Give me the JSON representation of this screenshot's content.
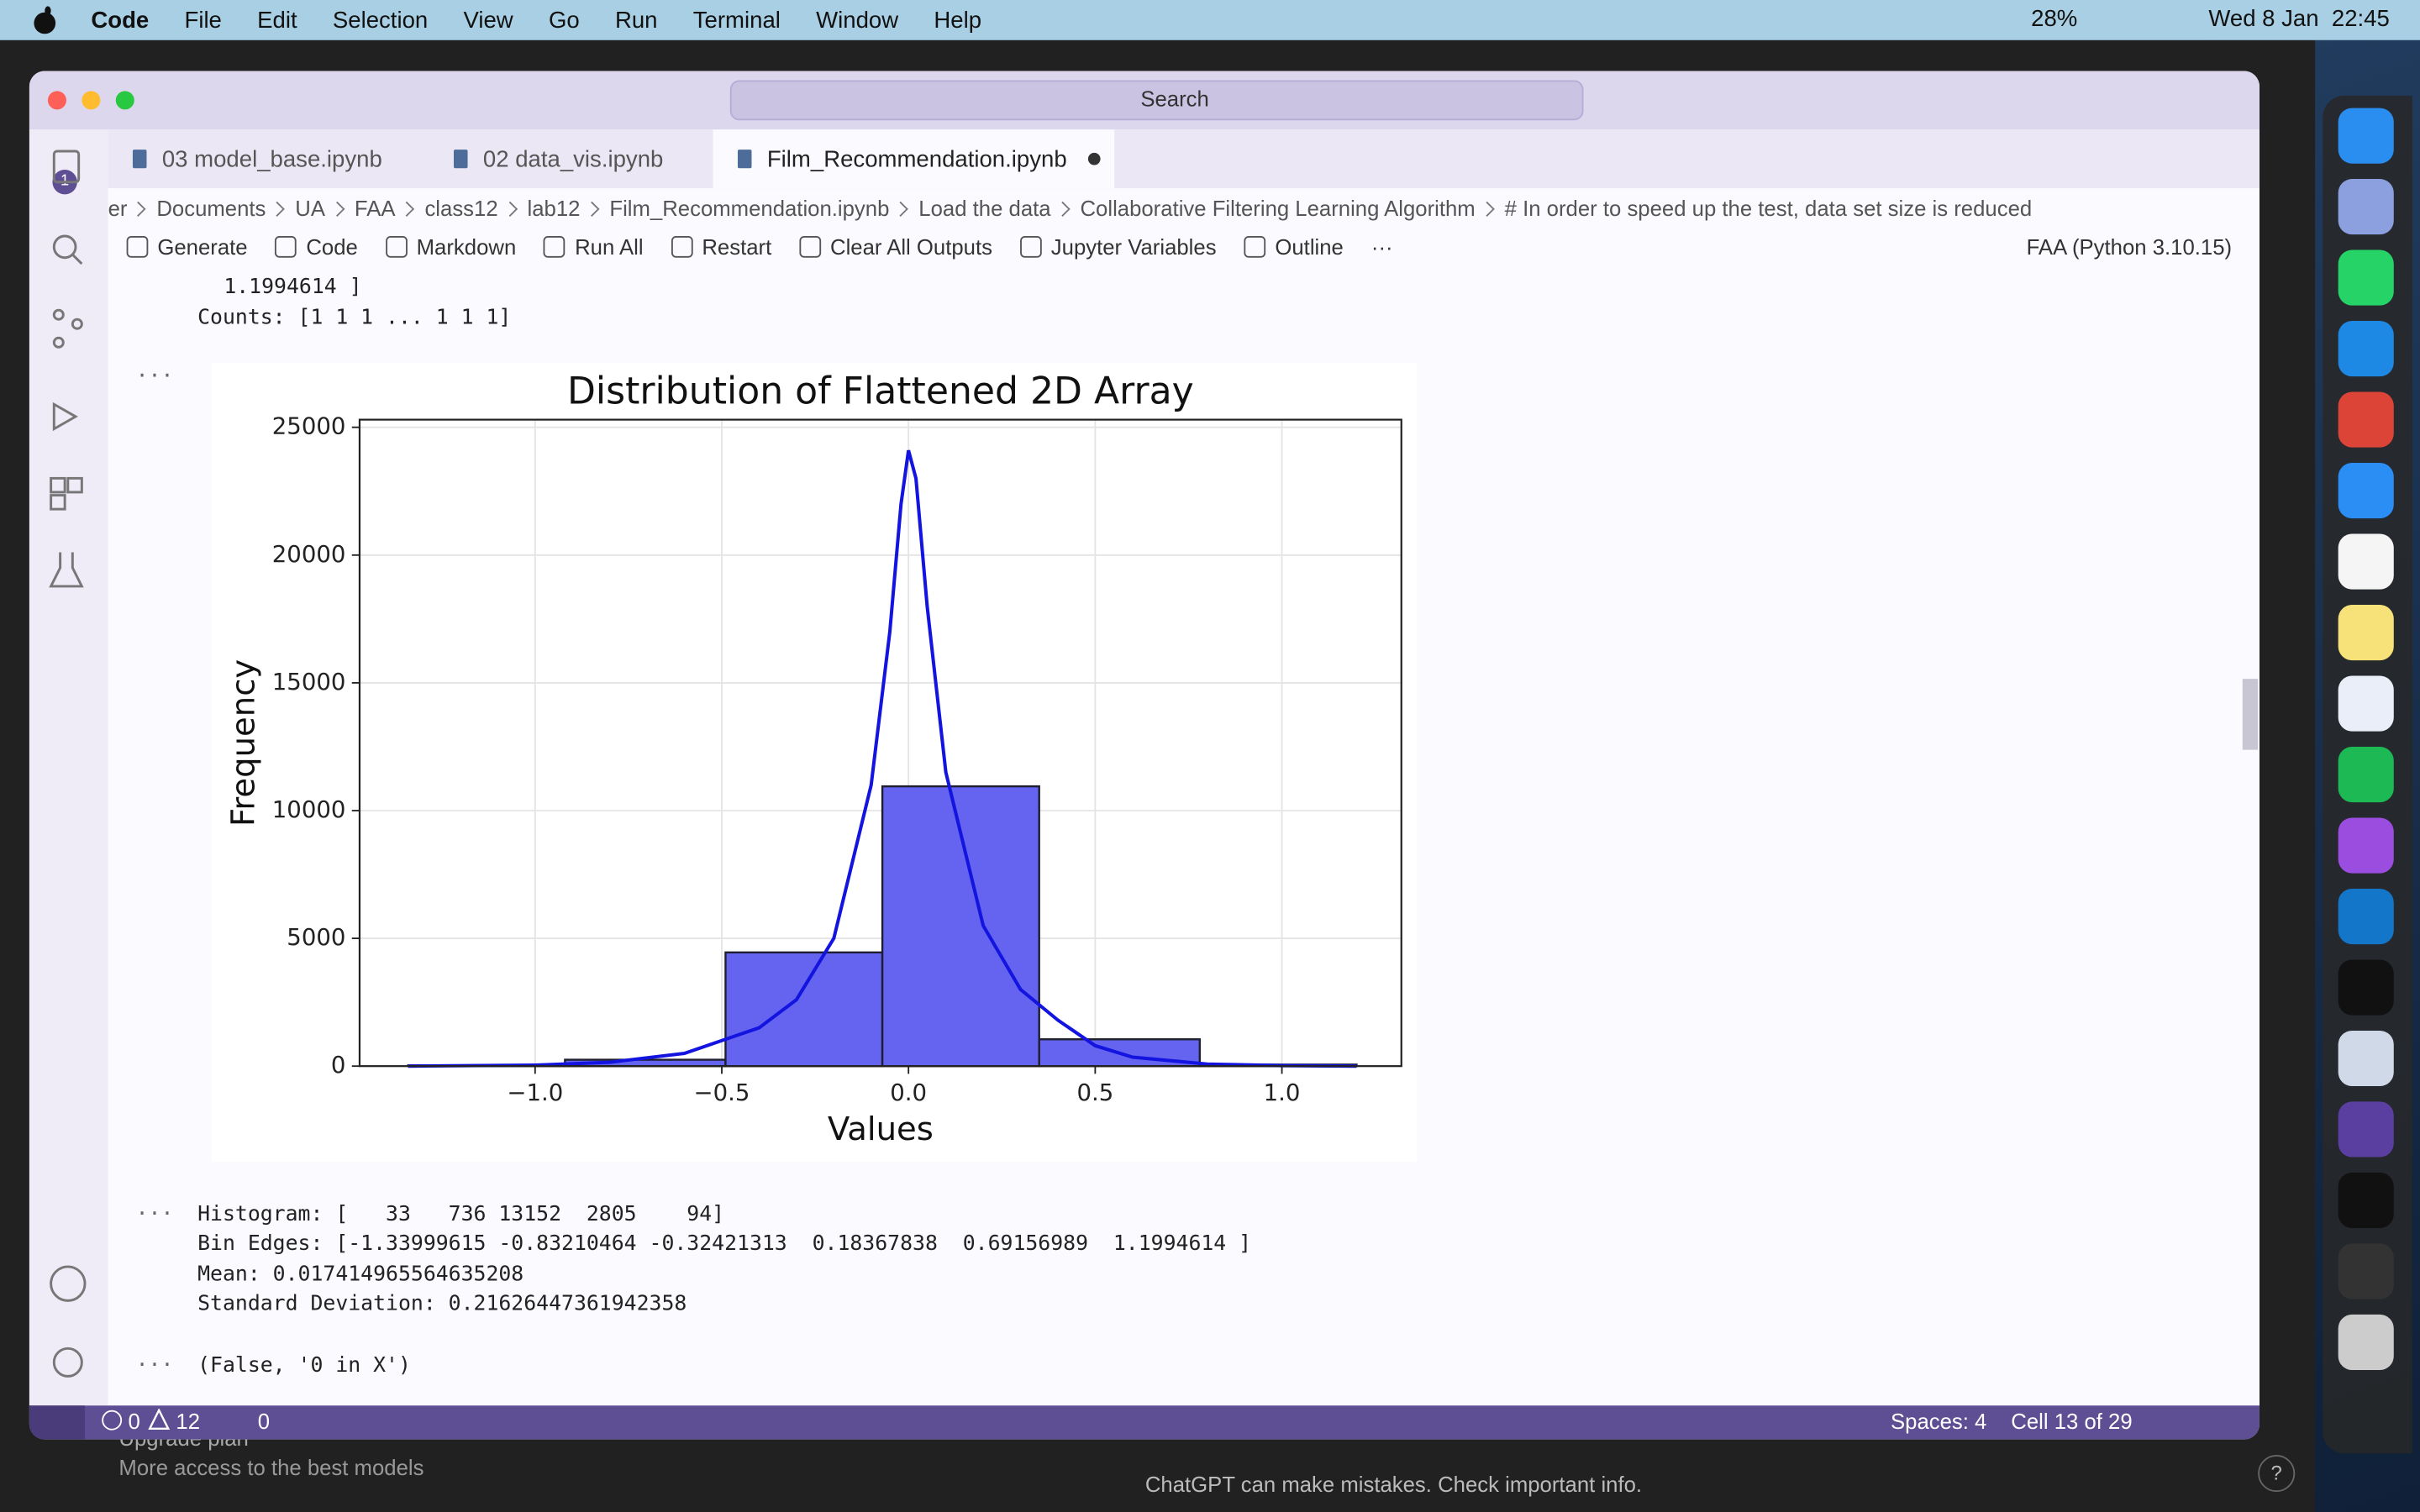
{
  "menubar": {
    "app": "Code",
    "items": [
      "File",
      "Edit",
      "Selection",
      "View",
      "Go",
      "Run",
      "Terminal",
      "Window",
      "Help"
    ],
    "battery": "28%",
    "clock": "Wed 8 Jan  22:45"
  },
  "window": {
    "search": "Search",
    "badge": "1",
    "tabs": [
      "03 model_base.ipynb",
      "02 data_vis.ipynb",
      "Film_Recommendation.ipynb"
    ],
    "breadcrumbs": [
      "er",
      "Documents",
      "UA",
      "FAA",
      "class12",
      "lab12",
      "Film_Recommendation.ipynb",
      "Load the data",
      "Collaborative Filtering Learning Algorithm",
      "# In order to speed up the test, data set size is reduced"
    ],
    "toolbar": [
      "Generate",
      "Code",
      "Markdown",
      "Run All",
      "Restart",
      "Clear All Outputs",
      "Jupyter Variables",
      "Outline"
    ],
    "more": "···",
    "kernel": "FAA (Python 3.10.15)"
  },
  "outputs": {
    "pre": [
      "1.1994614 ]",
      "Counts: [1 1 1 ... 1 1 1]"
    ],
    "post": [
      "Histogram: [   33   736 13152  2805    94]",
      "Bin Edges: [-1.33999615 -0.83210464 -0.32421313  0.18367838  0.69156989  1.1994614 ]",
      "Mean: 0.017414965564635208",
      "Standard Deviation: 0.21626447361942358"
    ],
    "tuple": "(False, '0 in X')"
  },
  "chart_data": {
    "type": "histogram",
    "title": "Distribution of Flattened 2D Array",
    "xlabel": "Values",
    "ylabel": "Frequency",
    "bins": [
      -1.34,
      -0.92,
      -0.49,
      -0.07,
      0.35,
      0.78,
      1.2
    ],
    "values": [
      30,
      250,
      4450,
      10950,
      1050,
      60
    ],
    "color": "#6464f0",
    "edgecolor": "#1e1e2e",
    "kde": {
      "x": [
        -1.34,
        -1.0,
        -0.8,
        -0.6,
        -0.4,
        -0.3,
        -0.2,
        -0.1,
        -0.05,
        -0.02,
        0,
        0.02,
        0.05,
        0.1,
        0.2,
        0.3,
        0.4,
        0.5,
        0.6,
        0.8,
        1.0,
        1.2
      ],
      "values": [
        0,
        40,
        150,
        500,
        1500,
        2600,
        5000,
        11000,
        17000,
        22000,
        24100,
        23000,
        18000,
        11500,
        5500,
        3000,
        1800,
        800,
        350,
        80,
        20,
        0
      ],
      "color": "#1414e0"
    },
    "xlim": [
      -1.47,
      1.32
    ],
    "ylim": [
      0,
      25300
    ],
    "xticks": [
      {
        "value": -1,
        "label": "−1.0"
      },
      {
        "value": -0.5,
        "label": "−0.5"
      },
      {
        "value": 0,
        "label": "0.0"
      },
      {
        "value": 0.5,
        "label": "0.5"
      },
      {
        "value": 1,
        "label": "1.0"
      }
    ],
    "yticks": [
      0,
      5000,
      10000,
      15000,
      20000,
      25000
    ],
    "grid": true
  },
  "status": {
    "errors": "0",
    "warnings": "12",
    "ports": "0",
    "spaces": "Spaces: 4",
    "cell": "Cell 13 of 29"
  },
  "background": {
    "upgrade": "Upgrade plan",
    "upgrade_sub": "More access to the best models",
    "disclaimer": "ChatGPT can make mistakes. Check important info.",
    "help": "?"
  }
}
